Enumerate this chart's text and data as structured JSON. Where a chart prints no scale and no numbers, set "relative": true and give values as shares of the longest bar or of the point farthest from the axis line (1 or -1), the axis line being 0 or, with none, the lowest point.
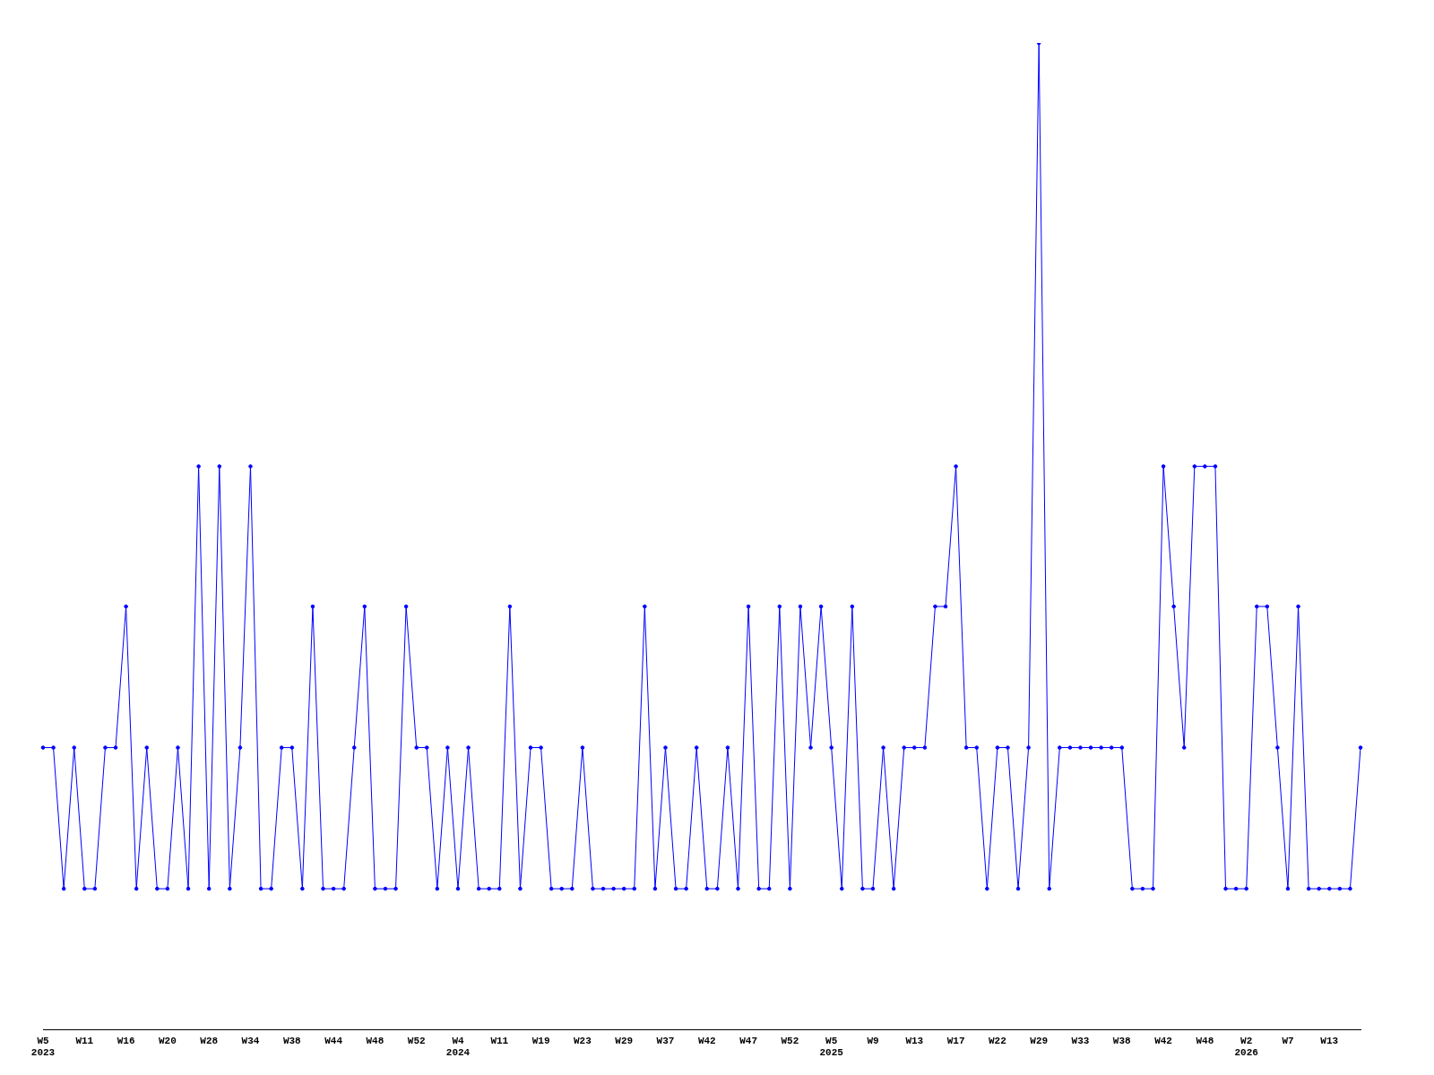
{
  "chart_data": {
    "type": "line",
    "relative": true,
    "color": "#0000ff",
    "marker": "circle",
    "grid": false,
    "legend": false,
    "categories": [
      "W5\n2023",
      null,
      null,
      null,
      "W11",
      null,
      null,
      null,
      "W16",
      null,
      null,
      null,
      "W20",
      null,
      null,
      null,
      "W28",
      null,
      null,
      null,
      "W34",
      null,
      null,
      null,
      "W38",
      null,
      null,
      null,
      "W44",
      null,
      null,
      null,
      "W48",
      null,
      null,
      null,
      "W52",
      null,
      null,
      null,
      "W4\n2024",
      null,
      null,
      null,
      "W11",
      null,
      null,
      null,
      "W19",
      null,
      null,
      null,
      "W23",
      null,
      null,
      null,
      "W29",
      null,
      null,
      null,
      "W37",
      null,
      null,
      null,
      "W42",
      null,
      null,
      null,
      "W47",
      null,
      null,
      null,
      "W52",
      null,
      null,
      null,
      "W5\n2025",
      null,
      null,
      null,
      "W9",
      null,
      null,
      null,
      "W13",
      null,
      null,
      null,
      "W17",
      null,
      null,
      null,
      "W22",
      null,
      null,
      null,
      "W29",
      null,
      null,
      null,
      "W33",
      null,
      null,
      null,
      "W38",
      null,
      null,
      null,
      "W42",
      null,
      null,
      null,
      "W48",
      null,
      null,
      null,
      "W2\n2026",
      null,
      null,
      null,
      "W7",
      null,
      null,
      null,
      "W13",
      null,
      null,
      null
    ],
    "values": [
      0.286,
      0.286,
      0.143,
      0.286,
      0.143,
      0.143,
      0.286,
      0.286,
      0.429,
      0.143,
      0.286,
      0.143,
      0.143,
      0.286,
      0.143,
      0.571,
      0.143,
      0.571,
      0.143,
      0.286,
      0.571,
      0.143,
      0.143,
      0.286,
      0.286,
      0.143,
      0.429,
      0.143,
      0.143,
      0.143,
      0.286,
      0.429,
      0.143,
      0.143,
      0.143,
      0.429,
      0.286,
      0.286,
      0.143,
      0.286,
      0.143,
      0.286,
      0.143,
      0.143,
      0.143,
      0.429,
      0.143,
      0.286,
      0.286,
      0.143,
      0.143,
      0.143,
      0.286,
      0.143,
      0.143,
      0.143,
      0.143,
      0.143,
      0.429,
      0.143,
      0.286,
      0.143,
      0.143,
      0.286,
      0.143,
      0.143,
      0.286,
      0.143,
      0.429,
      0.143,
      0.143,
      0.429,
      0.143,
      0.429,
      0.286,
      0.429,
      0.286,
      0.143,
      0.429,
      0.143,
      0.143,
      0.286,
      0.143,
      0.286,
      0.286,
      0.286,
      0.429,
      0.429,
      0.571,
      0.286,
      0.286,
      0.143,
      0.286,
      0.286,
      0.143,
      0.286,
      1,
      0.143,
      0.286,
      0.286,
      0.286,
      0.286,
      0.286,
      0.286,
      0.286,
      0.143,
      0.143,
      0.143,
      0.571,
      0.429,
      0.286,
      0.571,
      0.571,
      0.571,
      0.143,
      0.143,
      0.143,
      0.429,
      0.429,
      0.286,
      0.143,
      0.429,
      0.143,
      0.143,
      0.143,
      0.143,
      0.143,
      0.286
    ]
  }
}
